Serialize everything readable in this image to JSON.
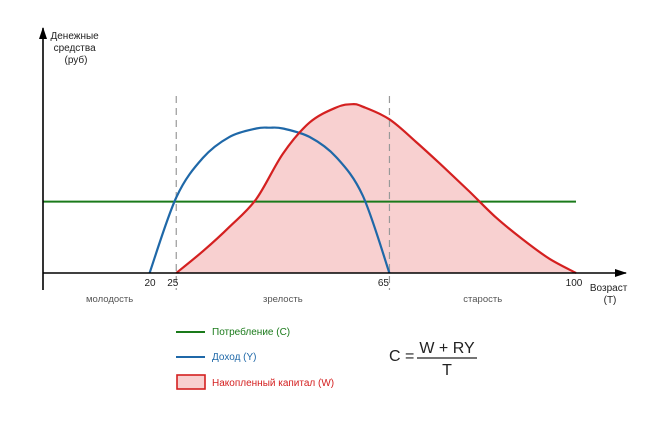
{
  "chart_data": {
    "type": "line",
    "ylabel_lines": [
      "Денежные",
      "средства",
      "(руб)"
    ],
    "xlabel_lines": [
      "Возраст",
      "(T)"
    ],
    "xlim": [
      0,
      100
    ],
    "ylim": [
      0,
      10
    ],
    "x_ticks": [
      "20",
      "25",
      "65",
      "100"
    ],
    "period_separators": [
      25,
      65
    ],
    "periods": [
      {
        "label": "молодость",
        "x": 12.5
      },
      {
        "label": "зрелость",
        "x": 45
      },
      {
        "label": "старость",
        "x": 82.5
      }
    ],
    "grid": false,
    "legend_position": "bottom-left",
    "series": [
      {
        "name": "Потребление (C)",
        "type": "line",
        "color": "#1a7a1a",
        "x": [
          0,
          100
        ],
        "y": [
          4.25,
          4.25
        ]
      },
      {
        "name": "Доход (Y)",
        "type": "line",
        "color": "#1f68a8",
        "x": [
          20,
          25,
          30,
          35,
          40,
          42.5,
          45,
          50,
          55,
          60,
          65
        ],
        "y": [
          0,
          4.5,
          6.85,
          8.1,
          8.6,
          8.65,
          8.6,
          8.1,
          6.9,
          4.6,
          0
        ]
      },
      {
        "name": "Накопленный капитал  (W)",
        "type": "area",
        "color": "#d42020",
        "fill": "#f8d0d0",
        "x": [
          25,
          30,
          35,
          40,
          45,
          50,
          55,
          58,
          60,
          65,
          70,
          75,
          80,
          85,
          90,
          95,
          100
        ],
        "y": [
          0,
          1.3,
          2.75,
          4.4,
          7.1,
          8.95,
          9.85,
          10.05,
          9.9,
          9.15,
          7.8,
          6.35,
          4.85,
          3.3,
          2.0,
          0.85,
          0
        ]
      }
    ]
  },
  "formula": {
    "lhs": "C =",
    "numerator": "W + RY",
    "denominator": "T"
  },
  "colors": {
    "axis": "#000000",
    "separator": "#999999"
  }
}
